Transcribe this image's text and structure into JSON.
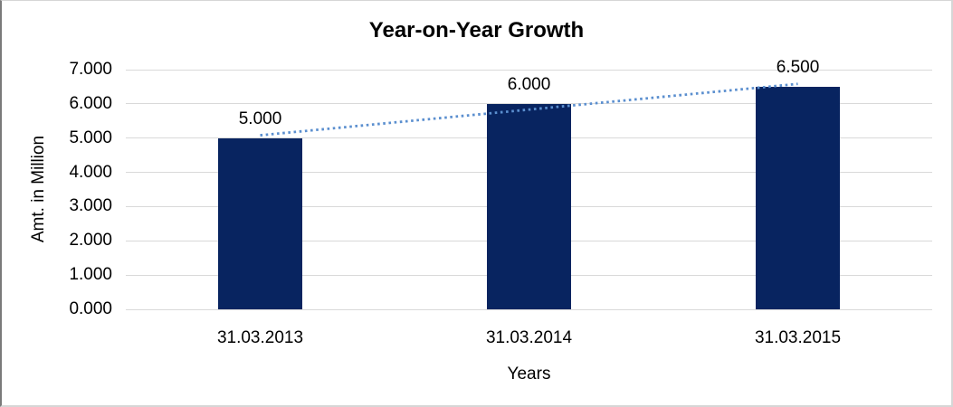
{
  "chart_data": {
    "type": "bar",
    "title": "Year-on-Year Growth",
    "xlabel": "Years",
    "ylabel": "Amt. in Million",
    "categories": [
      "31.03.2013",
      "31.03.2014",
      "31.03.2015"
    ],
    "values": [
      5.0,
      6.0,
      6.5
    ],
    "data_labels": [
      "5.000",
      "6.000",
      "6.500"
    ],
    "ylim": [
      0,
      7
    ],
    "ytick_step": 1,
    "ytick_labels": [
      "0.000",
      "1.000",
      "2.000",
      "3.000",
      "4.000",
      "5.000",
      "6.000",
      "7.000"
    ],
    "grid": true,
    "legend": "none",
    "trendline": {
      "style": "dotted",
      "fit": "linear"
    },
    "colors": {
      "bar": "#082460",
      "trendline": "#5B8FCF",
      "gridline": "#D9D9D9",
      "text": "#000000"
    }
  }
}
